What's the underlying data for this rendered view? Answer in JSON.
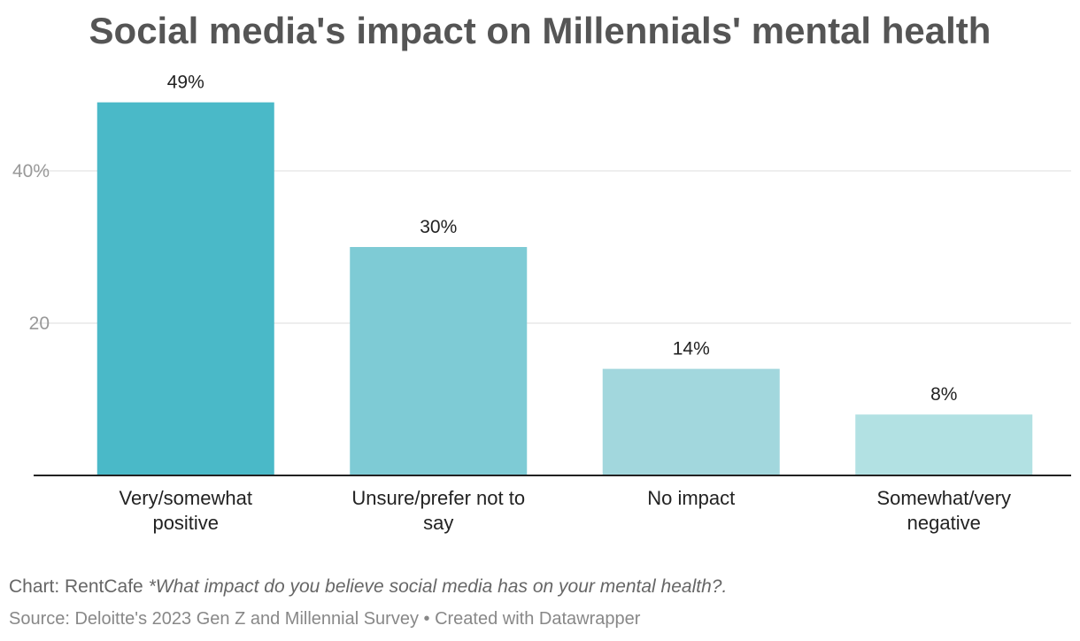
{
  "chart_data": {
    "type": "bar",
    "title": "Social media's impact on Millennials' mental health",
    "categories": [
      [
        "Very/somewhat",
        "positive"
      ],
      [
        "Unsure/prefer not to",
        "say"
      ],
      [
        "No impact"
      ],
      [
        "Somewhat/very",
        "negative"
      ]
    ],
    "values": [
      49,
      30,
      14,
      8
    ],
    "value_labels": [
      "49%",
      "30%",
      "14%",
      "8%"
    ],
    "bar_colors": [
      "#4ab9c8",
      "#7ecbd5",
      "#a2d7dd",
      "#b2e1e3"
    ],
    "y_ticks": [
      20,
      40
    ],
    "y_tick_labels": [
      "20",
      "40%"
    ],
    "ylim": [
      0,
      49
    ],
    "grid": true,
    "xlabel": "",
    "ylabel": ""
  },
  "footer": {
    "chart_credit": "Chart: RentCafe",
    "question": "*What impact do you believe social media has on your mental health?.",
    "source": "Source: Deloitte's 2023 Gen Z and Millennial Survey • Created with Datawrapper"
  }
}
